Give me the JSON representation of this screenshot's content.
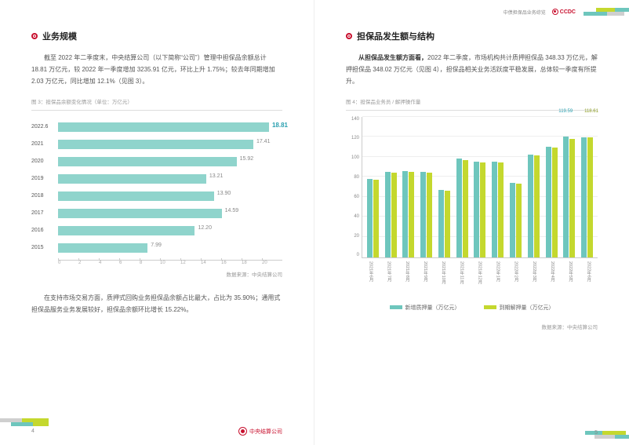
{
  "brand": {
    "header_text": "中债担保品业务综览",
    "ccdc": "CCDC",
    "footer_org": "中央结算公司",
    "red": "#c8102e",
    "teal": "#6ec6bd",
    "teal_dark": "#2aa0b0",
    "lime": "#c4d82e",
    "grey_block": "#cfcfcf"
  },
  "left": {
    "section_title": "业务规模",
    "para1": "截至 2022 年二季度末，中央结算公司（以下简称“公司”）管理中担保品余额总计 18.81 万亿元，较 2022 年一季度增加 3235.91 亿元，环比上升 1.75%；较去年同期增加 2.03 万亿元，同比增加 12.1%（见图 3）。",
    "chart_caption": "图 3：担保品余额变化情况（单位：万亿元）",
    "para2": "在支持市场交易方面，质押式回购业务担保品余额占比最大，占比为 35.90%；通用式担保品服务业务发展较好，担保品余额环比增长 15.22%。",
    "source": "数据来源：中央结算公司",
    "page_no": "4",
    "hbar": {
      "type": "horizontal_bar",
      "bar_color": "#8fd4cc",
      "highlight_color": "#2aa0b0",
      "label_color": "#888",
      "xmax": 20,
      "xtick_step": 2,
      "rows": [
        {
          "label": "2022.6",
          "value": 18.81,
          "highlight": true
        },
        {
          "label": "2021",
          "value": 17.41
        },
        {
          "label": "2020",
          "value": 15.92
        },
        {
          "label": "2019",
          "value": 13.21
        },
        {
          "label": "2018",
          "value": 13.9
        },
        {
          "label": "2017",
          "value": 14.59
        },
        {
          "label": "2016",
          "value": 12.2
        },
        {
          "label": "2015",
          "value": 7.99
        }
      ],
      "xticks": [
        "0",
        "2",
        "4",
        "6",
        "8",
        "10",
        "12",
        "14",
        "16",
        "18",
        "20"
      ]
    }
  },
  "right": {
    "section_title": "担保品发生额与结构",
    "para1_bold": "从担保品发生额方面看，",
    "para1_rest": "2022 年二季度，市场机构共计质押担保品 348.33 万亿元，解押担保品 348.02 万亿元（见图 4），担保品相关业务活跃度平稳发展，总体较一季度有所提升。",
    "chart_caption": "图 4：担保品业务员 / 解押操作量",
    "source": "数据来源：中央结算公司",
    "page_no": "5",
    "cols": {
      "type": "grouped_column",
      "series": [
        {
          "name": "新增质押量（万亿元）",
          "legend_short": "新增质押量（万亿元）",
          "color": "#6ec6bd"
        },
        {
          "name": "到期解押量（万亿元）",
          "legend_short": "到期解押量（万亿元）",
          "color": "#c4d82e"
        }
      ],
      "ymax": 140,
      "ytick_step": 20,
      "yticks": [
        "0",
        "20",
        "40",
        "60",
        "80",
        "100",
        "120",
        "140"
      ],
      "callouts": [
        {
          "index": 11,
          "series": 0,
          "text": "119.59"
        },
        {
          "index": 12,
          "series": 1,
          "text": "118.61"
        }
      ],
      "categories": [
        "2021年6月",
        "2021年7月",
        "2021年8月",
        "2021年9月",
        "2021年10月",
        "2021年11月",
        "2021年12月",
        "2022年1月",
        "2022年2月",
        "2022年3月",
        "2022年4月",
        "2022年5月",
        "2022年6月"
      ],
      "values_a": [
        78,
        85,
        86,
        85,
        67,
        98,
        95,
        95,
        74,
        102,
        110,
        120,
        119
      ],
      "values_b": [
        77,
        84,
        85,
        84,
        66,
        97,
        94,
        94,
        73,
        101,
        109,
        118,
        119
      ]
    }
  }
}
